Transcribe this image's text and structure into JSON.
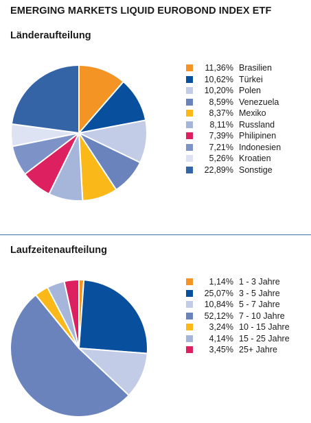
{
  "title": "EMERGING MARKETS LIQUID EUROBOND INDEX ETF",
  "chart_data": [
    {
      "type": "pie",
      "title": "Länderaufteilung",
      "categories": [
        "Brasilien",
        "Türkei",
        "Polen",
        "Venezuela",
        "Mexiko",
        "Russland",
        "Philipinen",
        "Indonesien",
        "Kroatien",
        "Sonstige"
      ],
      "values": [
        11.36,
        10.62,
        10.2,
        8.59,
        8.37,
        8.11,
        7.39,
        7.21,
        5.26,
        22.89
      ],
      "labels": [
        "11,36%",
        "10,62%",
        "10,20%",
        "8,59%",
        "8,37%",
        "8,11%",
        "7,39%",
        "7,21%",
        "5,26%",
        "22,89%"
      ],
      "colors": [
        "#f39425",
        "#08509e",
        "#c3cce6",
        "#6a83bd",
        "#fbb919",
        "#a6b5da",
        "#dd2060",
        "#7d93c8",
        "#dde3f2",
        "#3564a6"
      ]
    },
    {
      "type": "pie",
      "title": "Laufzeitenaufteilung",
      "categories": [
        "1 - 3 Jahre",
        "3 - 5 Jahre",
        "5 - 7 Jahre",
        "7 - 10 Jahre",
        "10 - 15 Jahre",
        "15 - 25 Jahre",
        "25+ Jahre"
      ],
      "values": [
        1.14,
        25.07,
        10.84,
        52.12,
        3.24,
        4.14,
        3.45
      ],
      "labels": [
        "1,14%",
        "25,07%",
        "10,84%",
        "52,12%",
        "3,24%",
        "4,14%",
        "3,45%"
      ],
      "colors": [
        "#f39425",
        "#08509e",
        "#c3cce6",
        "#6a83bd",
        "#fbb919",
        "#a6b5da",
        "#dd2060"
      ]
    }
  ]
}
